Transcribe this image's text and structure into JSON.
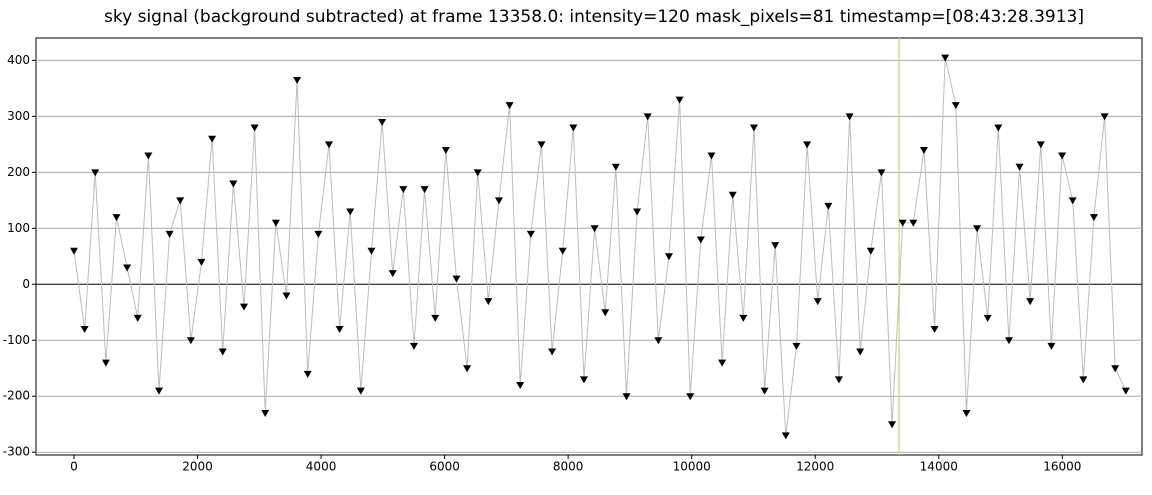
{
  "chart_data": {
    "type": "line",
    "title": "sky signal (background subtracted) at frame 13358.0: intensity=120 mask_pixels=81 timestamp=[08:43:28.3913]",
    "x": [
      0,
      172,
      344,
      516,
      688,
      860,
      1032,
      1204,
      1376,
      1548,
      1720,
      1892,
      2064,
      2236,
      2408,
      2580,
      2752,
      2924,
      3096,
      3268,
      3440,
      3612,
      3784,
      3956,
      4128,
      4300,
      4472,
      4644,
      4816,
      4988,
      5160,
      5332,
      5504,
      5676,
      5848,
      6020,
      6192,
      6364,
      6536,
      6708,
      6880,
      7052,
      7224,
      7396,
      7568,
      7740,
      7912,
      8084,
      8256,
      8428,
      8600,
      8772,
      8944,
      9116,
      9288,
      9460,
      9632,
      9804,
      9976,
      10148,
      10320,
      10492,
      10664,
      10836,
      11008,
      11180,
      11352,
      11524,
      11696,
      11868,
      12040,
      12212,
      12384,
      12556,
      12728,
      12900,
      13072,
      13244,
      13416,
      13588,
      13760,
      13932,
      14104,
      14276,
      14448,
      14620,
      14792,
      14964,
      15136,
      15308,
      15480,
      15652,
      15824,
      15996,
      16168,
      16340,
      16512,
      16684,
      16856,
      17028
    ],
    "series": [
      {
        "color": "#000000",
        "line_color": "#bdbdbd",
        "values": [
          60,
          -80,
          200,
          -140,
          120,
          30,
          -60,
          230,
          -190,
          90,
          150,
          -100,
          40,
          260,
          -120,
          180,
          -40,
          280,
          -230,
          110,
          -20,
          365,
          -160,
          90,
          250,
          -80,
          130,
          -190,
          60,
          290,
          20,
          170,
          -110,
          170,
          -60,
          240,
          10,
          -150,
          200,
          -30,
          150,
          320,
          -180,
          90,
          250,
          -120,
          60,
          280,
          -170,
          100,
          -50,
          210,
          -200,
          130,
          300,
          -100,
          50,
          330,
          -200,
          80,
          230,
          -140,
          160,
          -60,
          280,
          -190,
          70,
          -270,
          -110,
          250,
          -30,
          140,
          -170,
          300,
          -120,
          60,
          200,
          -250,
          110,
          110,
          240,
          -80,
          405,
          320,
          -230,
          100,
          -60,
          280,
          -100,
          210,
          -30,
          250,
          -110,
          230,
          150,
          -170,
          120,
          300,
          -150,
          -190
        ]
      }
    ],
    "xlim": [
      -615,
      17290
    ],
    "ylim": [
      -305,
      440
    ],
    "xticks": [
      0,
      2000,
      4000,
      6000,
      8000,
      10000,
      12000,
      14000,
      16000
    ],
    "yticks": [
      -300,
      -200,
      -100,
      0,
      100,
      200,
      300,
      400
    ],
    "grid": true,
    "marker": "triangle-down",
    "cursor_x": 13358,
    "cursor_color": "#d8d890"
  }
}
